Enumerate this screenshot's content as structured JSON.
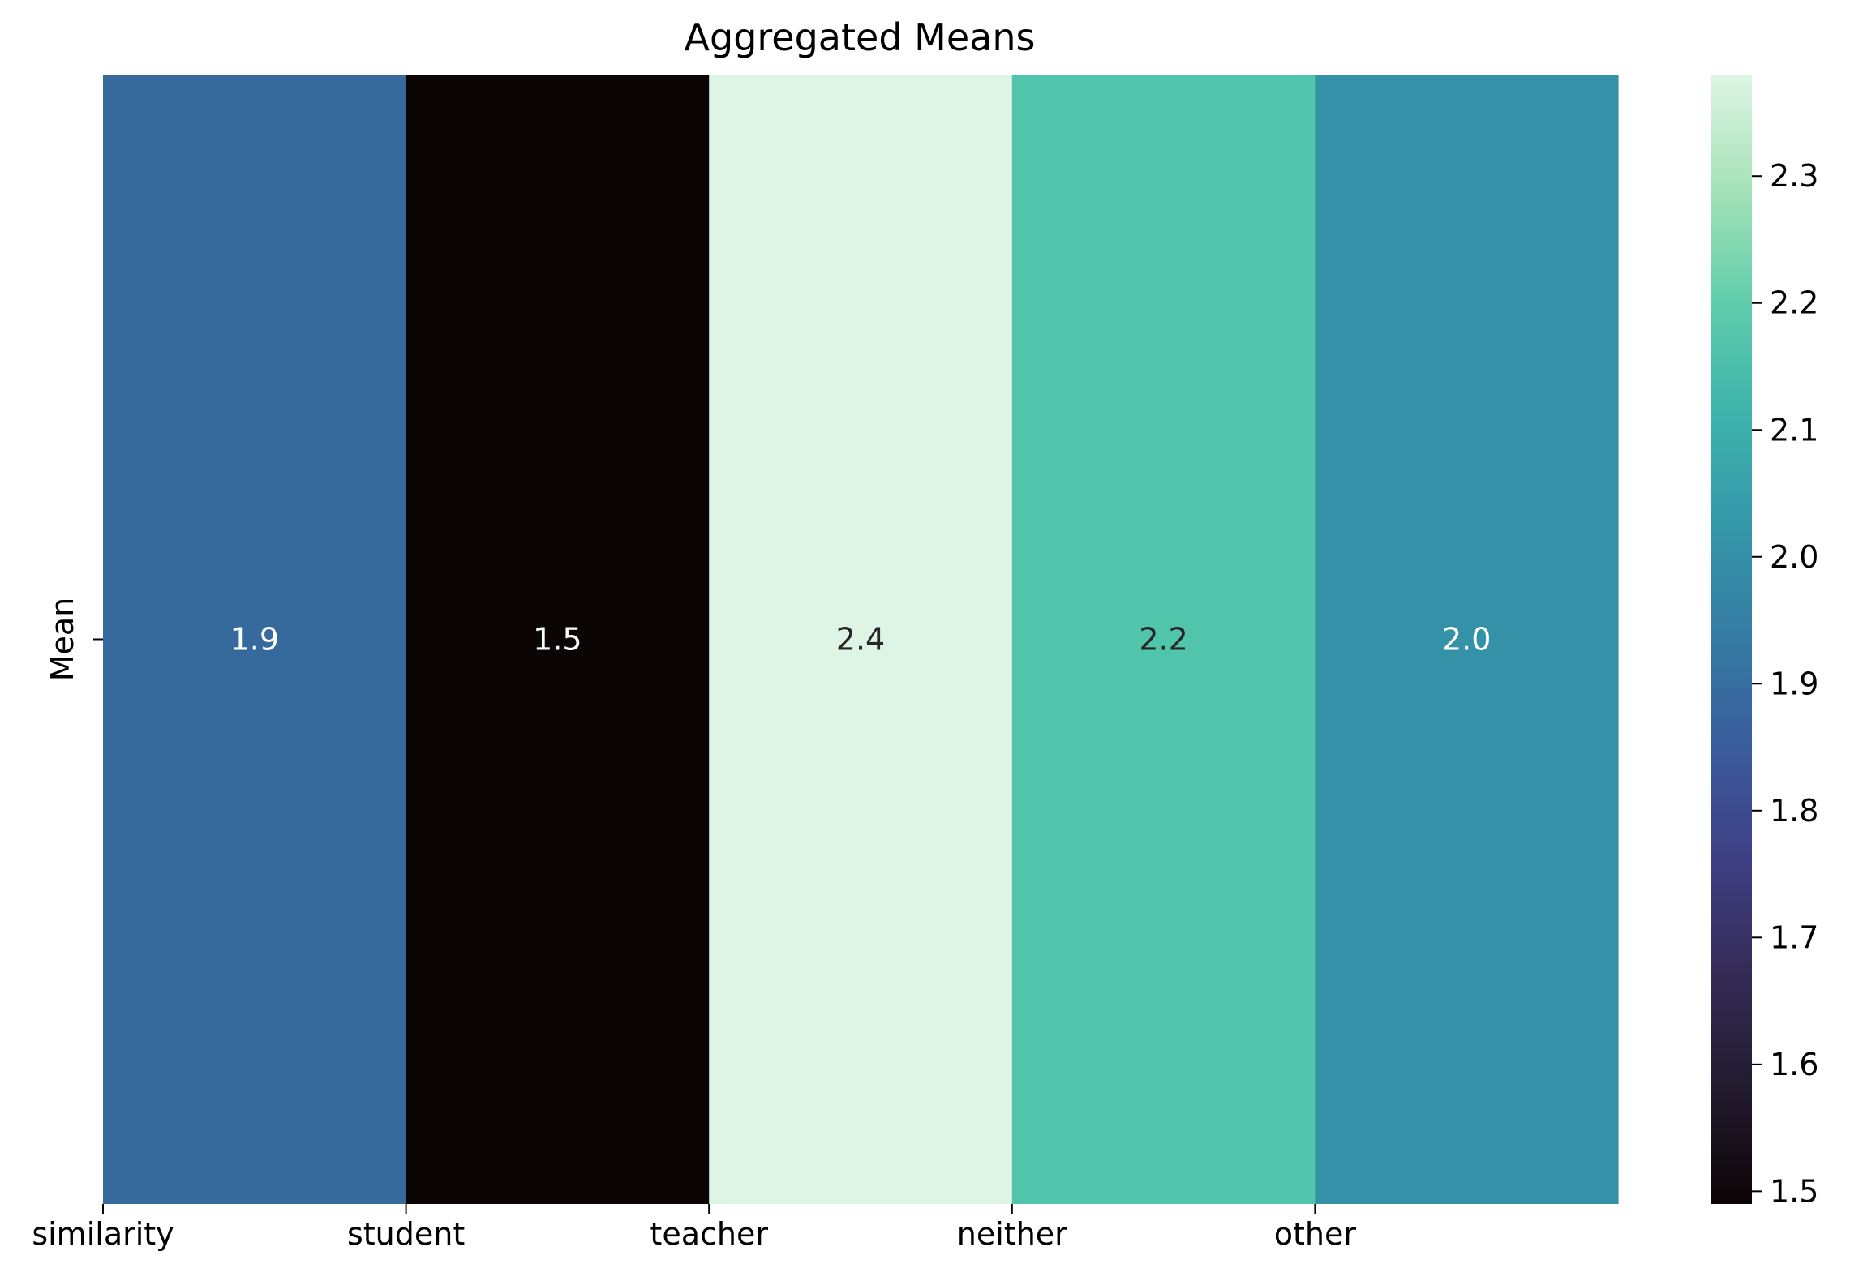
{
  "chart_data": {
    "type": "heatmap",
    "title": "Aggregated Means",
    "xlabel": "",
    "ylabel": "",
    "rows": [
      "Mean"
    ],
    "columns": [
      "similarity",
      "student",
      "teacher",
      "neither",
      "other"
    ],
    "values": [
      [
        1.9,
        1.5,
        2.4,
        2.2,
        2.0
      ]
    ],
    "annotations": [
      "1.9",
      "1.5",
      "2.4",
      "2.2",
      "2.0"
    ],
    "cell_colors": [
      "#366a9c",
      "#0b0506",
      "#def4e5",
      "#51c4ac",
      "#3491a7"
    ],
    "annotation_colors": [
      "#ffffff",
      "#ffffff",
      "#262626",
      "#262626",
      "#ffffff"
    ],
    "colorbar": {
      "colormap": "mako",
      "range": [
        1.49,
        2.38
      ],
      "ticks": [
        1.5,
        1.6,
        1.7,
        1.8,
        1.9,
        2.0,
        2.1,
        2.2,
        2.3
      ],
      "tick_labels": [
        "1.5",
        "1.6",
        "1.7",
        "1.8",
        "1.9",
        "2.0",
        "2.1",
        "2.2",
        "2.3"
      ]
    },
    "grid": false
  }
}
